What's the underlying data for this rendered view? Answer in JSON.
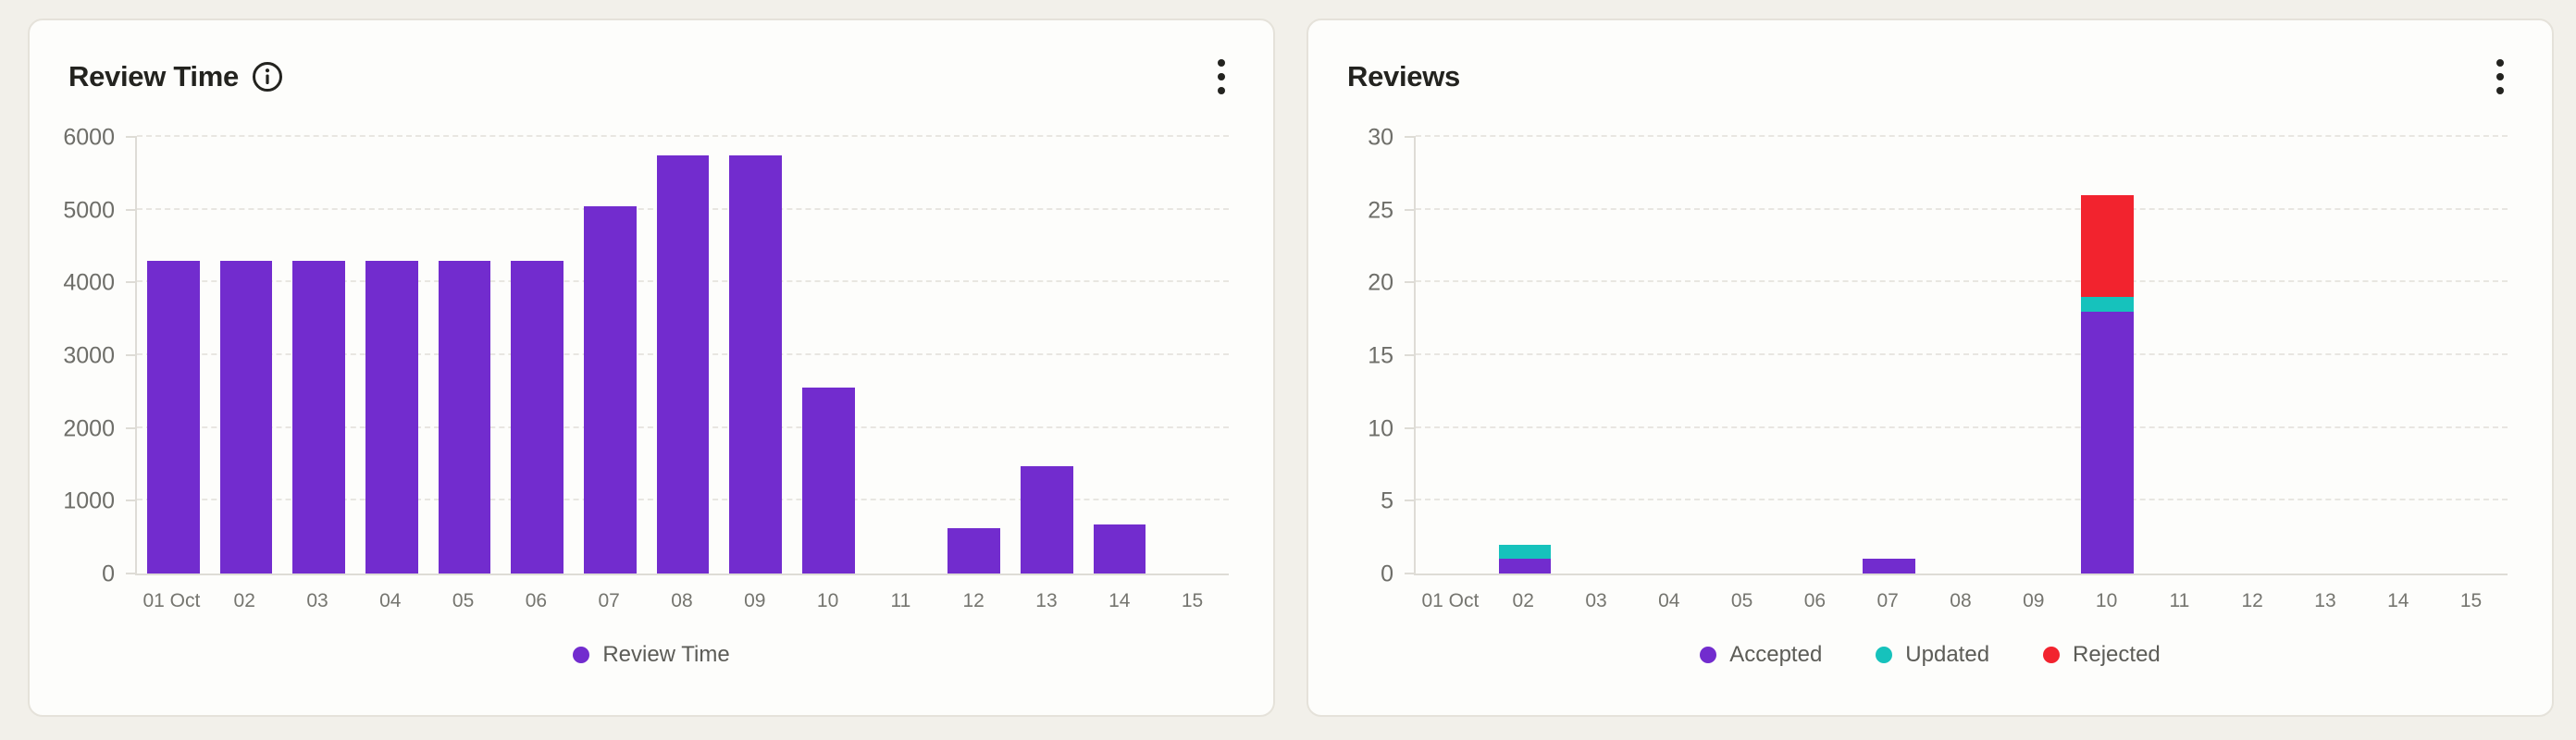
{
  "page": {
    "background_color": "#F2F0EA",
    "card_background": "#FDFDFB",
    "card_border_color": "#E5E2DA"
  },
  "cards": [
    {
      "title": "Review Time",
      "info_icon": "info-icon",
      "menu_icon": "kebab-menu-icon",
      "chart_index": 0
    },
    {
      "title": "Reviews",
      "menu_icon": "kebab-menu-icon",
      "chart_index": 1
    }
  ],
  "chart_data": [
    {
      "type": "bar",
      "title": "Review Time",
      "categories": [
        "01 Oct",
        "02",
        "03",
        "04",
        "05",
        "06",
        "07",
        "08",
        "09",
        "10",
        "11",
        "12",
        "13",
        "14",
        "15"
      ],
      "series": [
        {
          "name": "Review Time",
          "color": "#722CCE",
          "values": [
            4300,
            4300,
            4300,
            4300,
            4300,
            4300,
            5050,
            5750,
            5750,
            2550,
            0,
            620,
            1480,
            670,
            0
          ]
        }
      ],
      "xlabel": "",
      "ylabel": "",
      "ylim": [
        0,
        6000
      ],
      "yticks": [
        0,
        1000,
        2000,
        3000,
        4000,
        5000,
        6000
      ],
      "grid": "horizontal-dashed",
      "legend_position": "bottom",
      "legend": [
        "Review Time"
      ]
    },
    {
      "type": "stacked-bar",
      "title": "Reviews",
      "categories": [
        "01 Oct",
        "02",
        "03",
        "04",
        "05",
        "06",
        "07",
        "08",
        "09",
        "10",
        "11",
        "12",
        "13",
        "14",
        "15"
      ],
      "series": [
        {
          "name": "Accepted",
          "color": "#722CCE",
          "values": [
            0,
            1,
            0,
            0,
            0,
            0,
            1,
            0,
            0,
            18,
            0,
            0,
            0,
            0,
            0
          ]
        },
        {
          "name": "Updated",
          "color": "#16C2BC",
          "values": [
            0,
            1,
            0,
            0,
            0,
            0,
            0,
            0,
            0,
            1,
            0,
            0,
            0,
            0,
            0
          ]
        },
        {
          "name": "Rejected",
          "color": "#F2232E",
          "values": [
            0,
            0,
            0,
            0,
            0,
            0,
            0,
            0,
            0,
            7,
            0,
            0,
            0,
            0,
            0
          ]
        }
      ],
      "xlabel": "",
      "ylabel": "",
      "ylim": [
        0,
        30
      ],
      "yticks": [
        0,
        5,
        10,
        15,
        20,
        25,
        30
      ],
      "grid": "horizontal-dashed",
      "legend_position": "bottom",
      "legend": [
        "Accepted",
        "Updated",
        "Rejected"
      ]
    }
  ],
  "icons": {
    "info": "circled-i",
    "kebab": "three-vertical-dots"
  }
}
